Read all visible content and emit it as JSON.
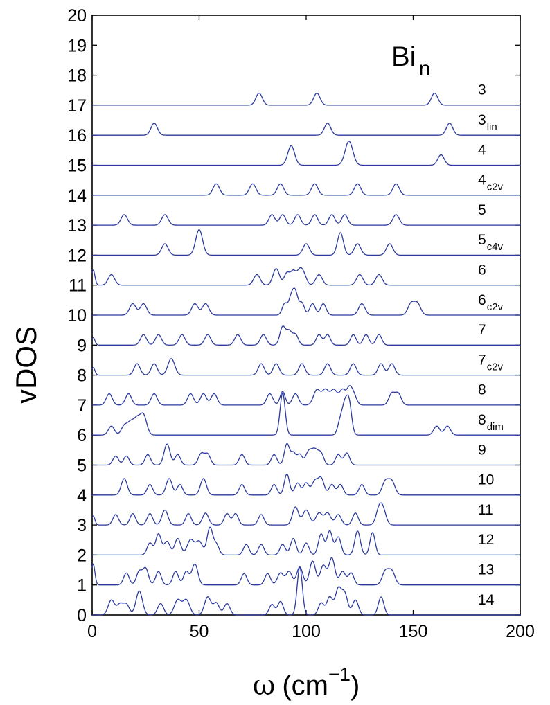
{
  "chart_data": {
    "type": "line",
    "annotation": {
      "main": "Bi",
      "sub": "n"
    },
    "xlabel": {
      "symbol": "ω",
      "unit": "(cm",
      "exponent": "−1",
      "close": ")"
    },
    "ylabel": "vDOS",
    "xlim": [
      0,
      200
    ],
    "ylim": [
      0,
      20
    ],
    "x_ticks": [
      "0",
      "50",
      "100",
      "150",
      "200"
    ],
    "y_ticks": [
      "0",
      "1",
      "2",
      "3",
      "4",
      "5",
      "6",
      "7",
      "8",
      "9",
      "10",
      "11",
      "12",
      "13",
      "14",
      "15",
      "16",
      "17",
      "18",
      "19",
      "20"
    ],
    "line_color": "#2b3a9e",
    "grid": false,
    "series": [
      {
        "main": "3",
        "sub": "",
        "baseline": 17,
        "peaks": [
          [
            78,
            0.4,
            1.5
          ],
          [
            105,
            0.4,
            1.5
          ],
          [
            160,
            0.4,
            1.5
          ]
        ]
      },
      {
        "main": "3",
        "sub": "lin",
        "baseline": 16,
        "peaks": [
          [
            29,
            0.4,
            1.5
          ],
          [
            110,
            0.4,
            1.5
          ],
          [
            167,
            0.4,
            1.5
          ]
        ]
      },
      {
        "main": "4",
        "sub": "",
        "baseline": 15,
        "peaks": [
          [
            93,
            0.65,
            1.6
          ],
          [
            120,
            0.8,
            1.8
          ],
          [
            163,
            0.35,
            1.5
          ]
        ]
      },
      {
        "main": "4",
        "sub": "c2v",
        "baseline": 14,
        "peaks": [
          [
            58,
            0.38,
            1.5
          ],
          [
            75,
            0.38,
            1.5
          ],
          [
            88,
            0.38,
            1.5
          ],
          [
            104,
            0.38,
            1.5
          ],
          [
            124,
            0.38,
            1.5
          ],
          [
            142,
            0.38,
            1.5
          ]
        ]
      },
      {
        "main": "5",
        "sub": "",
        "baseline": 13,
        "peaks": [
          [
            15,
            0.35,
            1.5
          ],
          [
            34,
            0.35,
            1.5
          ],
          [
            84,
            0.35,
            1.4
          ],
          [
            89,
            0.35,
            1.4
          ],
          [
            96,
            0.35,
            1.4
          ],
          [
            104,
            0.35,
            1.4
          ],
          [
            112,
            0.35,
            1.4
          ],
          [
            118,
            0.35,
            1.4
          ],
          [
            142,
            0.35,
            1.5
          ]
        ]
      },
      {
        "main": "5",
        "sub": "c4v",
        "baseline": 12,
        "peaks": [
          [
            34,
            0.38,
            1.5
          ],
          [
            50,
            0.85,
            1.6
          ],
          [
            100,
            0.38,
            1.5
          ],
          [
            116,
            0.75,
            1.4
          ],
          [
            124,
            0.38,
            1.5
          ],
          [
            139,
            0.38,
            1.5
          ]
        ]
      },
      {
        "main": "6",
        "sub": "",
        "baseline": 11,
        "peaks": [
          [
            0.5,
            0.5,
            0.8
          ],
          [
            9,
            0.35,
            1.5
          ],
          [
            77,
            0.35,
            1.5
          ],
          [
            86,
            0.55,
            1.5
          ],
          [
            91,
            0.4,
            1.3
          ],
          [
            94,
            0.45,
            1.3
          ],
          [
            97,
            0.45,
            1.3
          ],
          [
            99,
            0.3,
            1.3
          ],
          [
            106,
            0.35,
            1.5
          ],
          [
            125,
            0.35,
            1.5
          ],
          [
            134,
            0.35,
            1.5
          ]
        ]
      },
      {
        "main": "6",
        "sub": "c2v",
        "baseline": 10,
        "peaks": [
          [
            19,
            0.38,
            1.5
          ],
          [
            24,
            0.38,
            1.5
          ],
          [
            48,
            0.38,
            1.5
          ],
          [
            53,
            0.38,
            1.5
          ],
          [
            90,
            0.38,
            1.2
          ],
          [
            93,
            0.55,
            1.2
          ],
          [
            95,
            0.7,
            1.2
          ],
          [
            98,
            0.4,
            1.2
          ],
          [
            103,
            0.38,
            1.3
          ],
          [
            108,
            0.38,
            1.3
          ],
          [
            126,
            0.38,
            1.5
          ],
          [
            149,
            0.38,
            1.5
          ],
          [
            152,
            0.38,
            1.5
          ]
        ]
      },
      {
        "main": "7",
        "sub": "",
        "baseline": 9,
        "peaks": [
          [
            0.5,
            0.25,
            0.8
          ],
          [
            24,
            0.35,
            1.4
          ],
          [
            31,
            0.35,
            1.4
          ],
          [
            42,
            0.35,
            1.4
          ],
          [
            54,
            0.35,
            1.4
          ],
          [
            68,
            0.35,
            1.4
          ],
          [
            80,
            0.35,
            1.4
          ],
          [
            89,
            0.6,
            1.3
          ],
          [
            92,
            0.45,
            1.3
          ],
          [
            95,
            0.35,
            1.3
          ],
          [
            106,
            0.35,
            1.3
          ],
          [
            110,
            0.35,
            1.3
          ],
          [
            122,
            0.35,
            1.3
          ],
          [
            128,
            0.35,
            1.3
          ],
          [
            134,
            0.35,
            1.3
          ]
        ]
      },
      {
        "main": "7",
        "sub": "c2v",
        "baseline": 8,
        "peaks": [
          [
            0.5,
            0.25,
            0.8
          ],
          [
            21,
            0.38,
            1.4
          ],
          [
            29,
            0.38,
            1.4
          ],
          [
            37,
            0.55,
            1.6
          ],
          [
            79,
            0.38,
            1.4
          ],
          [
            86,
            0.38,
            1.4
          ],
          [
            98,
            0.38,
            1.4
          ],
          [
            110,
            0.38,
            1.4
          ],
          [
            122,
            0.38,
            1.4
          ],
          [
            135,
            0.38,
            1.4
          ],
          [
            140,
            0.38,
            1.4
          ]
        ]
      },
      {
        "main": "8",
        "sub": "",
        "baseline": 7,
        "peaks": [
          [
            8,
            0.38,
            1.4
          ],
          [
            17,
            0.38,
            1.4
          ],
          [
            29,
            0.38,
            1.4
          ],
          [
            46,
            0.38,
            1.4
          ],
          [
            52,
            0.38,
            1.4
          ],
          [
            57,
            0.38,
            1.4
          ],
          [
            83,
            0.38,
            1.4
          ],
          [
            89,
            0.45,
            1.2
          ],
          [
            95,
            0.38,
            1.4
          ],
          [
            105,
            0.5,
            1.6
          ],
          [
            109,
            0.5,
            1.6
          ],
          [
            113,
            0.5,
            1.6
          ],
          [
            117,
            0.5,
            1.4
          ],
          [
            120,
            0.45,
            1.2
          ],
          [
            122,
            0.38,
            1.4
          ],
          [
            140,
            0.38,
            1.4
          ],
          [
            143,
            0.38,
            1.4
          ]
        ]
      },
      {
        "main": "8",
        "sub": "dim",
        "baseline": 6,
        "peaks": [
          [
            9,
            0.3,
            1.4
          ],
          [
            15,
            0.3,
            1.4
          ],
          [
            18,
            0.4,
            1.5
          ],
          [
            21,
            0.5,
            1.5
          ],
          [
            24,
            0.65,
            1.5
          ],
          [
            89,
            1.4,
            1.2
          ],
          [
            116,
            0.5,
            1.2
          ],
          [
            118,
            0.8,
            1.1
          ],
          [
            120,
            1.1,
            1.2
          ],
          [
            161,
            0.3,
            1.4
          ],
          [
            166,
            0.3,
            1.4
          ]
        ]
      },
      {
        "main": "9",
        "sub": "",
        "baseline": 5,
        "peaks": [
          [
            11,
            0.3,
            1.3
          ],
          [
            16,
            0.3,
            1.3
          ],
          [
            26,
            0.35,
            1.3
          ],
          [
            35,
            0.7,
            1.4
          ],
          [
            40,
            0.35,
            1.3
          ],
          [
            51,
            0.38,
            1.4
          ],
          [
            54,
            0.35,
            1.3
          ],
          [
            70,
            0.35,
            1.3
          ],
          [
            85,
            0.35,
            1.3
          ],
          [
            91,
            0.7,
            1.2
          ],
          [
            94,
            0.4,
            1.2
          ],
          [
            97,
            0.35,
            1.2
          ],
          [
            101,
            0.4,
            1.4
          ],
          [
            104,
            0.5,
            1.6
          ],
          [
            107,
            0.35,
            1.3
          ],
          [
            115,
            0.35,
            1.3
          ],
          [
            119,
            0.4,
            1.3
          ]
        ]
      },
      {
        "main": "10",
        "sub": "",
        "baseline": 4,
        "peaks": [
          [
            15,
            0.55,
            1.4
          ],
          [
            27,
            0.35,
            1.3
          ],
          [
            36,
            0.55,
            1.4
          ],
          [
            41,
            0.35,
            1.3
          ],
          [
            52,
            0.55,
            1.4
          ],
          [
            70,
            0.35,
            1.3
          ],
          [
            85,
            0.35,
            1.3
          ],
          [
            91,
            0.7,
            1.2
          ],
          [
            96,
            0.4,
            1.3
          ],
          [
            100,
            0.4,
            1.3
          ],
          [
            104,
            0.45,
            1.4
          ],
          [
            107,
            0.55,
            1.4
          ],
          [
            112,
            0.35,
            1.3
          ],
          [
            116,
            0.35,
            1.3
          ],
          [
            126,
            0.35,
            1.3
          ],
          [
            137,
            0.45,
            1.5
          ],
          [
            140,
            0.45,
            1.5
          ]
        ]
      },
      {
        "main": "11",
        "sub": "",
        "baseline": 3,
        "peaks": [
          [
            0.5,
            0.3,
            0.8
          ],
          [
            11,
            0.35,
            1.3
          ],
          [
            19,
            0.38,
            1.3
          ],
          [
            27,
            0.38,
            1.3
          ],
          [
            34,
            0.5,
            1.4
          ],
          [
            45,
            0.38,
            1.3
          ],
          [
            53,
            0.4,
            1.4
          ],
          [
            63,
            0.38,
            1.3
          ],
          [
            67,
            0.38,
            1.3
          ],
          [
            79,
            0.35,
            1.3
          ],
          [
            95,
            0.6,
            1.4
          ],
          [
            100,
            0.5,
            1.6
          ],
          [
            106,
            0.4,
            1.5
          ],
          [
            110,
            0.4,
            1.5
          ],
          [
            115,
            0.35,
            1.4
          ],
          [
            123,
            0.4,
            1.3
          ],
          [
            134,
            0.5,
            1.4
          ],
          [
            136,
            0.45,
            1.4
          ]
        ]
      },
      {
        "main": "12",
        "sub": "",
        "baseline": 2,
        "peaks": [
          [
            27,
            0.4,
            1.3
          ],
          [
            31,
            0.7,
            1.3
          ],
          [
            35,
            0.45,
            1.4
          ],
          [
            40,
            0.55,
            1.4
          ],
          [
            46,
            0.5,
            1.6
          ],
          [
            50,
            0.45,
            1.6
          ],
          [
            55,
            0.9,
            1.3
          ],
          [
            58,
            0.35,
            1.3
          ],
          [
            72,
            0.35,
            1.3
          ],
          [
            79,
            0.35,
            1.3
          ],
          [
            89,
            0.35,
            1.3
          ],
          [
            94,
            0.55,
            1.3
          ],
          [
            100,
            0.4,
            1.3
          ],
          [
            107,
            0.7,
            1.3
          ],
          [
            111,
            0.8,
            1.3
          ],
          [
            115,
            0.6,
            1.3
          ],
          [
            124,
            0.8,
            1.3
          ],
          [
            131,
            0.75,
            1.2
          ]
        ]
      },
      {
        "main": "13",
        "sub": "",
        "baseline": 1,
        "peaks": [
          [
            0.5,
            0.7,
            0.8
          ],
          [
            16,
            0.4,
            1.3
          ],
          [
            22,
            0.45,
            1.3
          ],
          [
            25,
            0.55,
            1.3
          ],
          [
            31,
            0.45,
            1.3
          ],
          [
            39,
            0.45,
            1.3
          ],
          [
            44,
            0.45,
            1.3
          ],
          [
            48,
            0.7,
            1.4
          ],
          [
            71,
            0.38,
            1.3
          ],
          [
            82,
            0.38,
            1.3
          ],
          [
            88,
            0.4,
            1.4
          ],
          [
            92,
            0.45,
            1.4
          ],
          [
            97,
            0.6,
            1.4
          ],
          [
            103,
            0.8,
            1.4
          ],
          [
            108,
            0.65,
            1.4
          ],
          [
            112,
            0.9,
            1.4
          ],
          [
            117,
            0.45,
            1.4
          ],
          [
            121,
            0.4,
            1.3
          ],
          [
            137,
            0.45,
            1.5
          ],
          [
            140,
            0.45,
            1.5
          ]
        ]
      },
      {
        "main": "14",
        "sub": "",
        "baseline": 0,
        "peaks": [
          [
            9,
            0.5,
            1.5
          ],
          [
            13,
            0.35,
            1.4
          ],
          [
            16,
            0.35,
            1.4
          ],
          [
            22,
            0.8,
            1.5
          ],
          [
            32,
            0.38,
            1.4
          ],
          [
            40,
            0.5,
            1.6
          ],
          [
            44,
            0.5,
            1.6
          ],
          [
            54,
            0.6,
            1.5
          ],
          [
            58,
            0.4,
            1.4
          ],
          [
            63,
            0.38,
            1.4
          ],
          [
            84,
            0.35,
            1.3
          ],
          [
            88,
            0.45,
            1.3
          ],
          [
            97,
            1.6,
            1.2
          ],
          [
            107,
            0.4,
            1.3
          ],
          [
            111,
            0.6,
            1.4
          ],
          [
            115,
            0.85,
            1.4
          ],
          [
            118,
            0.7,
            1.4
          ],
          [
            123,
            0.5,
            1.4
          ],
          [
            135,
            0.6,
            1.3
          ]
        ]
      }
    ]
  }
}
